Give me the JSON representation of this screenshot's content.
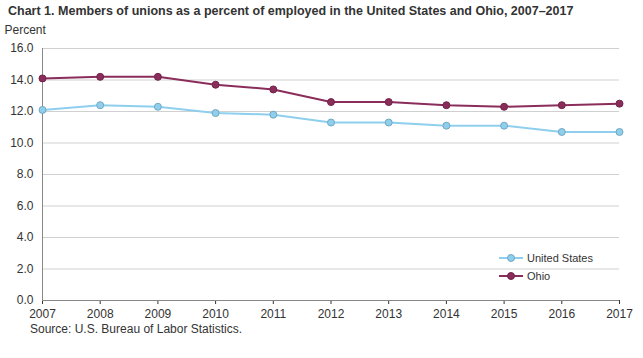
{
  "chart_data": {
    "type": "line",
    "title": "Chart 1. Members of unions as a percent of employed in the United States and Ohio, 2007–2017",
    "y_label": "Percent",
    "caption": "Source: U.S. Bureau of Labor Statistics.",
    "x": [
      2007,
      2008,
      2009,
      2010,
      2011,
      2012,
      2013,
      2014,
      2015,
      2016,
      2017
    ],
    "series": [
      {
        "name": "United States",
        "color": "#8ecfee",
        "marker": "circle",
        "values": [
          12.1,
          12.4,
          12.3,
          11.9,
          11.8,
          11.3,
          11.3,
          11.1,
          11.1,
          10.7,
          10.7
        ]
      },
      {
        "name": "Ohio",
        "color": "#8b2d5a",
        "marker": "circle",
        "values": [
          14.1,
          14.2,
          14.2,
          13.7,
          13.4,
          12.6,
          12.6,
          12.4,
          12.3,
          12.4,
          12.5
        ]
      }
    ],
    "xlim": [
      2007,
      2017
    ],
    "xticks": [
      2007,
      2008,
      2009,
      2010,
      2011,
      2012,
      2013,
      2014,
      2015,
      2016,
      2017
    ],
    "ylim": [
      0,
      16
    ],
    "yticks": [
      {
        "value": 0,
        "label": "0.0"
      },
      {
        "value": 2,
        "label": "2.0"
      },
      {
        "value": 4,
        "label": "4.0"
      },
      {
        "value": 6,
        "label": "6.0"
      },
      {
        "value": 8,
        "label": "8.0"
      },
      {
        "value": 10,
        "label": "10.0"
      },
      {
        "value": 12,
        "label": "12.0"
      },
      {
        "value": 14,
        "label": "14.0"
      },
      {
        "value": 16,
        "label": "16.0"
      }
    ],
    "grid": true,
    "legend": "lower right"
  }
}
